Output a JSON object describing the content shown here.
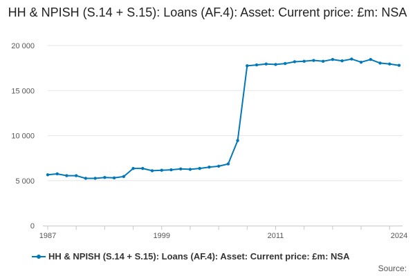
{
  "chart_data": {
    "type": "line",
    "title": "HH & NPISH (S.14 + S.15): Loans (AF.4): Asset: Current price: £m: NSA",
    "xlabel": "",
    "ylabel": "",
    "xlim": [
      1987,
      2024
    ],
    "ylim": [
      0,
      20000
    ],
    "y_ticks": [
      0,
      5000,
      10000,
      15000,
      20000
    ],
    "y_tick_labels": [
      "0",
      "5 000",
      "10 000",
      "15 000",
      "20 000"
    ],
    "x_tick_labels": [
      "1987",
      "1999",
      "2011",
      "2024"
    ],
    "x_tick_values": [
      1987,
      1999,
      2011,
      2024
    ],
    "grid": true,
    "legend_position": "bottom-left",
    "series": [
      {
        "name": "HH & NPISH (S.14 + S.15): Loans (AF.4): Asset: Current price: £m: NSA",
        "color": "#0077b6",
        "x": [
          1987,
          1988,
          1989,
          1990,
          1991,
          1992,
          1993,
          1994,
          1995,
          1996,
          1997,
          1998,
          1999,
          2000,
          2001,
          2002,
          2003,
          2004,
          2005,
          2006,
          2007,
          2008,
          2009,
          2010,
          2011,
          2012,
          2013,
          2014,
          2015,
          2016,
          2017,
          2018,
          2019,
          2020,
          2021,
          2022,
          2023,
          2024
        ],
        "values": [
          5650,
          5750,
          5550,
          5550,
          5250,
          5250,
          5350,
          5300,
          5450,
          6350,
          6350,
          6100,
          6150,
          6200,
          6300,
          6250,
          6350,
          6500,
          6600,
          6850,
          9450,
          17750,
          17850,
          17950,
          17900,
          18000,
          18200,
          18250,
          18350,
          18250,
          18450,
          18300,
          18500,
          18150,
          18450,
          18050,
          17950,
          17800
        ]
      }
    ]
  },
  "source_label": "Source:"
}
